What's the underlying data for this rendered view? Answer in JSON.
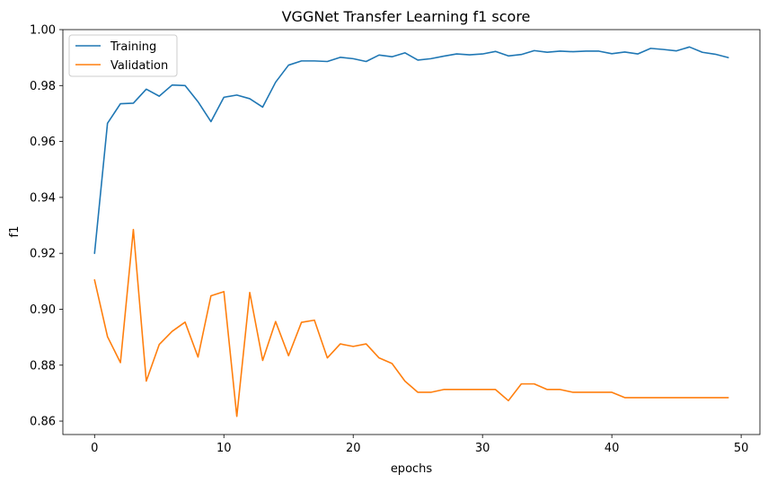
{
  "chart_data": {
    "type": "line",
    "title": "VGGNet Transfer Learning f1 score",
    "xlabel": "epochs",
    "ylabel": "f1",
    "xlim": [
      -2.45,
      51.45
    ],
    "ylim": [
      0.8552,
      1.0
    ],
    "xticks": [
      0,
      10,
      20,
      30,
      40,
      50
    ],
    "yticks": [
      0.86,
      0.88,
      0.9,
      0.92,
      0.94,
      0.96,
      0.98,
      1.0
    ],
    "ytick_labels": [
      "0.86",
      "0.88",
      "0.90",
      "0.92",
      "0.94",
      "0.96",
      "0.98",
      "1.00"
    ],
    "grid": false,
    "legend_position": "upper-left",
    "x": [
      0,
      1,
      2,
      3,
      4,
      5,
      6,
      7,
      8,
      9,
      10,
      11,
      12,
      13,
      14,
      15,
      16,
      17,
      18,
      19,
      20,
      21,
      22,
      23,
      24,
      25,
      26,
      27,
      28,
      29,
      30,
      31,
      32,
      33,
      34,
      35,
      36,
      37,
      38,
      39,
      40,
      41,
      42,
      43,
      44,
      45,
      46,
      47,
      48,
      49
    ],
    "series": [
      {
        "name": "Training",
        "color": "#1f77b4",
        "values": [
          0.92,
          0.9665,
          0.9735,
          0.9737,
          0.9787,
          0.9762,
          0.9802,
          0.98,
          0.9742,
          0.9671,
          0.9758,
          0.9766,
          0.9753,
          0.9723,
          0.9812,
          0.9873,
          0.9888,
          0.9888,
          0.9886,
          0.9901,
          0.9896,
          0.9886,
          0.9909,
          0.9903,
          0.9917,
          0.9891,
          0.9896,
          0.9905,
          0.9913,
          0.991,
          0.9913,
          0.9922,
          0.9906,
          0.9911,
          0.9925,
          0.9919,
          0.9923,
          0.9921,
          0.9923,
          0.9923,
          0.9914,
          0.992,
          0.9913,
          0.9933,
          0.9929,
          0.9924,
          0.9938,
          0.9919,
          0.9912,
          0.99
        ]
      },
      {
        "name": "Validation",
        "color": "#ff7f0e",
        "values": [
          0.9105,
          0.8902,
          0.8809,
          0.9285,
          0.8743,
          0.8874,
          0.8921,
          0.8954,
          0.8829,
          0.9048,
          0.9063,
          0.8617,
          0.906,
          0.8817,
          0.8956,
          0.8834,
          0.8953,
          0.8961,
          0.8826,
          0.8876,
          0.8867,
          0.8876,
          0.8826,
          0.8806,
          0.8743,
          0.8703,
          0.8703,
          0.8713,
          0.8713,
          0.8713,
          0.8713,
          0.8713,
          0.8673,
          0.8733,
          0.8733,
          0.8713,
          0.8713,
          0.8703,
          0.8703,
          0.8703,
          0.8703,
          0.8684,
          0.8684,
          0.8684,
          0.8684,
          0.8684,
          0.8684,
          0.8684,
          0.8684,
          0.8684
        ]
      }
    ]
  }
}
